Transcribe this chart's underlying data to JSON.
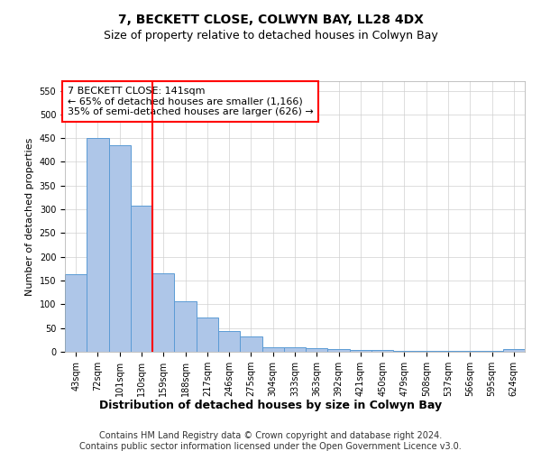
{
  "title_line1": "7, BECKETT CLOSE, COLWYN BAY, LL28 4DX",
  "title_line2": "Size of property relative to detached houses in Colwyn Bay",
  "xlabel": "Distribution of detached houses by size in Colwyn Bay",
  "ylabel": "Number of detached properties",
  "categories": [
    "43sqm",
    "72sqm",
    "101sqm",
    "130sqm",
    "159sqm",
    "188sqm",
    "217sqm",
    "246sqm",
    "275sqm",
    "304sqm",
    "333sqm",
    "363sqm",
    "392sqm",
    "421sqm",
    "450sqm",
    "479sqm",
    "508sqm",
    "537sqm",
    "566sqm",
    "595sqm",
    "624sqm"
  ],
  "values": [
    163,
    450,
    435,
    307,
    165,
    106,
    73,
    44,
    33,
    10,
    10,
    8,
    5,
    3,
    3,
    2,
    2,
    2,
    2,
    1,
    5
  ],
  "bar_color": "#aec6e8",
  "bar_edge_color": "#5b9bd5",
  "vline_color": "red",
  "annotation_text": "7 BECKETT CLOSE: 141sqm\n← 65% of detached houses are smaller (1,166)\n35% of semi-detached houses are larger (626) →",
  "annotation_box_color": "white",
  "annotation_box_edge_color": "red",
  "ylim": [
    0,
    570
  ],
  "yticks": [
    0,
    50,
    100,
    150,
    200,
    250,
    300,
    350,
    400,
    450,
    500,
    550
  ],
  "footnote_line1": "Contains HM Land Registry data © Crown copyright and database right 2024.",
  "footnote_line2": "Contains public sector information licensed under the Open Government Licence v3.0.",
  "title_fontsize": 10,
  "subtitle_fontsize": 9,
  "xlabel_fontsize": 9,
  "ylabel_fontsize": 8,
  "tick_fontsize": 7,
  "annotation_fontsize": 8,
  "footnote_fontsize": 7
}
